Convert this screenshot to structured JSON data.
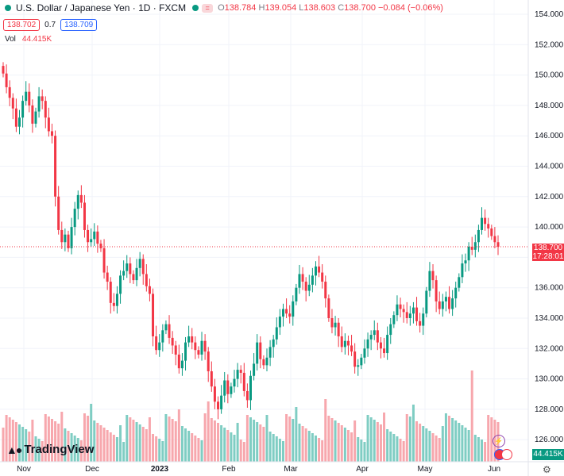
{
  "legend": {
    "title": "U.S. Dollar / Japanese Yen · 1D · FXCM",
    "ohlc": {
      "o_label": "O",
      "o": "138.784",
      "h_label": "H",
      "h": "139.054",
      "l_label": "L",
      "l": "138.603",
      "c_label": "C",
      "c": "138.700",
      "change": "−0.084 (−0.06%)"
    },
    "sell_price": "138.702",
    "spread": "0.7",
    "buy_price": "138.709",
    "vol_label": "Vol",
    "vol_value": "44.415K"
  },
  "price_axis": {
    "ticks": [
      "154.000",
      "152.000",
      "150.000",
      "148.000",
      "146.000",
      "144.000",
      "142.000",
      "140.000",
      "138.000",
      "136.000",
      "134.000",
      "132.000",
      "130.000",
      "128.000",
      "126.000"
    ],
    "last_price": "138.700",
    "countdown": "17:28:01",
    "volume_tag": "44.415K"
  },
  "time_axis": {
    "labels": [
      "Nov",
      "Dec",
      "2023",
      "Feb",
      "Mar",
      "Apr",
      "May",
      "Jun"
    ]
  },
  "branding": {
    "name": "TradingView"
  },
  "colors": {
    "up": "#089981",
    "down": "#f23645",
    "up_volume": "#7fcdc3",
    "down_volume": "#f7a7ad",
    "last_price_line": "#f23645"
  },
  "chart_data": {
    "type": "candlestick",
    "title": "U.S. Dollar / Japanese Yen · 1D · FXCM",
    "ylim": [
      125,
      154.5
    ],
    "x_labels": [
      "Nov",
      "Dec",
      "2023",
      "Feb",
      "Mar",
      "Apr",
      "May",
      "Jun"
    ],
    "close_series": [
      150.1,
      149.2,
      148.5,
      147.8,
      146.6,
      147.2,
      148.3,
      148.9,
      148.0,
      146.8,
      147.6,
      148.6,
      148.3,
      147.2,
      146.3,
      146.0,
      142.0,
      139.8,
      139.0,
      139.5,
      138.6,
      140.0,
      141.2,
      142.1,
      141.6,
      139.8,
      139.0,
      139.2,
      139.7,
      138.9,
      138.6,
      137.0,
      136.4,
      135.0,
      134.8,
      135.6,
      136.8,
      137.1,
      137.6,
      136.9,
      136.5,
      137.3,
      137.9,
      136.9,
      136.1,
      135.6,
      132.8,
      131.9,
      132.4,
      133.2,
      133.6,
      132.7,
      132.2,
      131.6,
      130.7,
      131.2,
      132.4,
      132.8,
      132.4,
      131.9,
      131.6,
      132.5,
      131.8,
      130.5,
      129.5,
      128.5,
      128.0,
      128.9,
      129.9,
      129.0,
      129.5,
      130.0,
      130.6,
      130.4,
      129.2,
      128.6,
      130.2,
      131.0,
      132.4,
      131.3,
      130.9,
      131.4,
      132.1,
      132.6,
      133.4,
      134.1,
      134.6,
      134.3,
      134.1,
      135.1,
      136.0,
      136.9,
      136.4,
      135.8,
      136.2,
      136.8,
      137.4,
      137.0,
      136.4,
      135.3,
      134.0,
      133.4,
      133.7,
      132.8,
      132.1,
      132.5,
      132.2,
      131.8,
      130.8,
      130.9,
      131.4,
      132.0,
      132.6,
      132.9,
      133.2,
      132.4,
      132.0,
      131.7,
      132.9,
      133.6,
      134.2,
      134.9,
      134.6,
      134.4,
      134.0,
      134.3,
      134.7,
      133.8,
      133.5,
      134.3,
      135.8,
      137.1,
      136.5,
      135.1,
      134.6,
      135.1,
      135.4,
      134.6,
      135.3,
      136.0,
      136.7,
      137.6,
      137.8,
      138.7,
      138.5,
      139.0,
      139.8,
      140.6,
      140.2,
      139.9,
      139.4,
      139.0,
      138.7
    ],
    "volume_note": "daily volume bars shown beneath candles"
  }
}
